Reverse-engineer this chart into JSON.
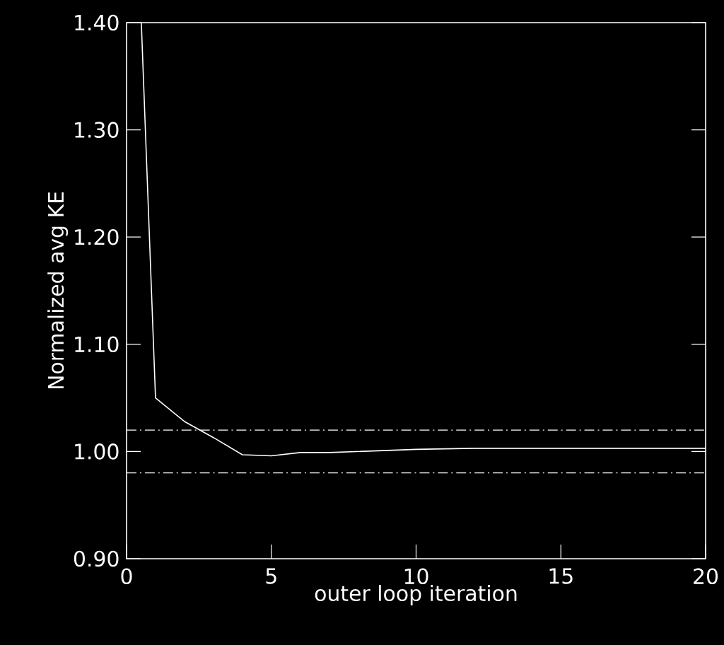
{
  "chart_data": {
    "type": "line",
    "xlabel": "outer loop iteration",
    "ylabel": "Normalized avg KE",
    "x": [
      0.51,
      1,
      2,
      3,
      4,
      5,
      6,
      7,
      8,
      9,
      10,
      12,
      15,
      20
    ],
    "series": [
      {
        "color": "#ffffff",
        "values": [
          1.4,
          1.05,
          1.028,
          1.013,
          0.997,
          0.996,
          0.999,
          0.999,
          1.0,
          1.001,
          1.002,
          1.003,
          1.003,
          1.003
        ]
      }
    ],
    "xlim": [
      0,
      20
    ],
    "ylim": [
      0.9,
      1.4
    ],
    "xticks": [
      0,
      5,
      10,
      15,
      20
    ],
    "yticks": [
      {
        "value": 0.9,
        "label": "0.90"
      },
      {
        "value": 1.0,
        "label": "1.00"
      },
      {
        "value": 1.1,
        "label": "1.10"
      },
      {
        "value": 1.2,
        "label": "1.20"
      },
      {
        "value": 1.3,
        "label": "1.30"
      },
      {
        "value": 1.4,
        "label": "1.40"
      }
    ],
    "ref_lines": [
      {
        "axis": "y",
        "value": 1.02,
        "color": "#ffffff",
        "line_style": "dashdot"
      },
      {
        "axis": "y",
        "value": 0.98,
        "color": "#ffffff",
        "line_style": "dashdot"
      }
    ],
    "grid": false,
    "marker": "none",
    "line_style": "solid"
  }
}
